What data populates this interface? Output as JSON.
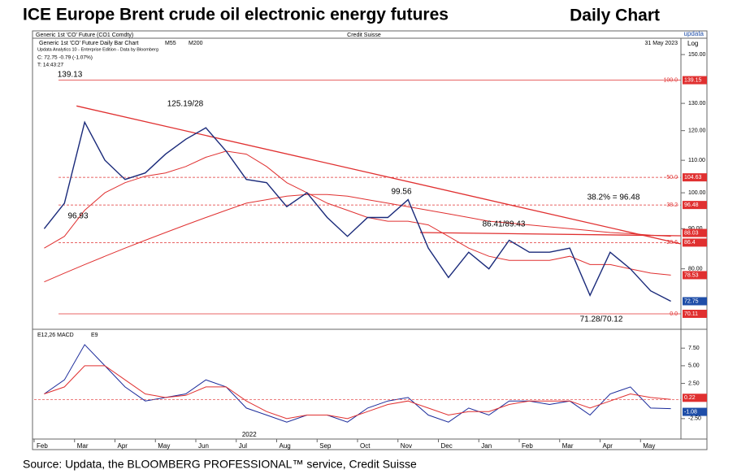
{
  "header": {
    "title": "ICE Europe Brent crude oil electronic energy futures",
    "right_title": "Daily Chart"
  },
  "panel_header": {
    "instrument": "Generic 1st 'CO' Future (CO1 Comdty)",
    "broker": "Credit Suisse",
    "brand": "updata",
    "chart_name": "Generic 1st 'CO' Future Daily Bar Chart",
    "ma1": "M55",
    "ma2": "M200",
    "date": "31 May 2023",
    "scale": "Log",
    "edition": "Updata Analytics 10 - Enterprise Edition - Data by Bloomberg",
    "close": "C: 72.75 -0.79 (-1.07%)",
    "time": "T: 14:43:27"
  },
  "chart_data": [
    {
      "type": "line",
      "log_scale": true,
      "ylim": [
        67,
        157
      ],
      "yticks": [
        {
          "value": 80,
          "label": "80.00"
        },
        {
          "value": 90,
          "label": "90.00"
        },
        {
          "value": 100,
          "label": "100.00"
        },
        {
          "value": 110,
          "label": "110.00"
        },
        {
          "value": 120,
          "label": "120.00"
        },
        {
          "value": 130,
          "label": "130.00"
        },
        {
          "value": 150,
          "label": "150.00"
        }
      ],
      "series": [
        {
          "name": "Generic 1st 'CO' Future",
          "color": "#1a2a7a",
          "values": [
            90,
            97,
            123,
            110,
            104,
            106,
            112,
            117,
            121,
            113,
            104,
            103,
            96,
            100,
            93,
            88,
            93,
            93,
            98,
            85,
            78,
            84,
            80,
            87,
            84,
            84,
            85,
            74,
            84,
            80,
            75,
            72.75
          ]
        },
        {
          "name": "M55",
          "color": "#e03030",
          "values": [
            85,
            88,
            95,
            100,
            103,
            105,
            106,
            108,
            111,
            113,
            112,
            108,
            103,
            100,
            97,
            95,
            93,
            92,
            92,
            91,
            88,
            85,
            83,
            82,
            82,
            82,
            83,
            81,
            81,
            80,
            79,
            78.53
          ]
        },
        {
          "name": "M200",
          "color": "#e03030",
          "values": [
            77,
            79,
            81,
            83,
            85,
            87,
            89,
            91,
            93,
            95,
            97,
            98,
            99,
            99.5,
            99.5,
            99,
            98,
            97,
            96,
            95,
            94,
            93,
            92,
            91.5,
            91,
            90.5,
            90,
            89.5,
            89,
            88.7,
            88.3,
            88.03
          ]
        }
      ],
      "fib_levels": [
        {
          "label": "100.0",
          "value": 139.15
        },
        {
          "label": "50.0",
          "value": 104.63
        },
        {
          "label": "38.2",
          "value": 96.48
        },
        {
          "label": "23.6",
          "value": 86.4
        },
        {
          "label": "0.0",
          "value": 70.11
        }
      ],
      "annotations": [
        "139.13",
        "125.19/28",
        "96.93",
        "99.56",
        "86.41/89.43",
        "38.2% = 96.48",
        "71.28/70.12"
      ]
    },
    {
      "type": "line",
      "title": "E12,26 MACD",
      "signal_name": "E9",
      "categories": [
        "Feb",
        null,
        "Mar",
        null,
        "Apr",
        null,
        "May",
        null,
        "Jun",
        null,
        "Jul",
        null,
        "Aug",
        null,
        "Sep",
        null,
        "Oct",
        null,
        "Nov",
        null,
        "Dec",
        null,
        "Jan",
        null,
        "Feb",
        null,
        "Mar",
        null,
        "Apr",
        null,
        "May",
        null
      ],
      "year_label": "2022",
      "ylim": [
        -5.4,
        9.6
      ],
      "yticks": [
        {
          "value": -2.5,
          "label": "-2.50"
        },
        {
          "value": 2.5,
          "label": "2.50"
        },
        {
          "value": 5,
          "label": "5.00"
        },
        {
          "value": 7.5,
          "label": "7.50"
        }
      ],
      "series": [
        {
          "name": "MACD",
          "color": "#1a2a9a",
          "values": [
            1,
            3,
            8,
            5,
            2,
            0,
            0.5,
            1,
            3,
            2,
            -1,
            -2,
            -3,
            -2,
            -2,
            -3,
            -1,
            0,
            0.5,
            -2,
            -3,
            -1,
            -2,
            0,
            0,
            -0.5,
            0,
            -2,
            1,
            2,
            -1,
            -1.08
          ]
        },
        {
          "name": "Signal",
          "color": "#e03030",
          "values": [
            1,
            2,
            5,
            5,
            3,
            1,
            0.5,
            0.8,
            2,
            2,
            0,
            -1.5,
            -2.5,
            -2,
            -2,
            -2.5,
            -1.5,
            -0.5,
            0,
            -1,
            -2,
            -1.5,
            -1.5,
            -0.5,
            0,
            0,
            0,
            -1,
            0,
            1,
            0.5,
            0.22
          ]
        }
      ]
    }
  ],
  "source": "Source: Updata, the BLOOMBERG PROFESSIONAL™ service, Credit Suisse"
}
